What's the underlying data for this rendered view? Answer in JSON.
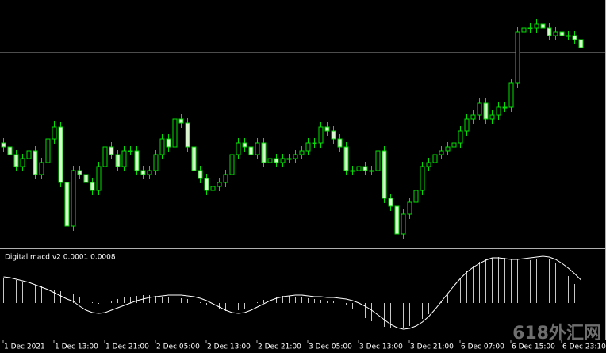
{
  "chart_data": [
    {
      "type": "candlestick",
      "categories": [
        "1 Dec 2021",
        null,
        null,
        null,
        null,
        null,
        null,
        null,
        "1 Dec 13:00",
        null,
        null,
        null,
        null,
        null,
        null,
        null,
        "1 Dec 21:00",
        null,
        null,
        null,
        null,
        null,
        null,
        null,
        "2 Dec 05:00",
        null,
        null,
        null,
        null,
        null,
        null,
        null,
        "2 Dec 13:00",
        null,
        null,
        null,
        null,
        null,
        null,
        null,
        "2 Dec 21:00",
        null,
        null,
        null,
        null,
        null,
        null,
        null,
        "3 Dec 05:00",
        null,
        null,
        null,
        null,
        null,
        null,
        null,
        "3 Dec 13:00",
        null,
        null,
        null,
        null,
        null,
        null,
        null,
        "3 Dec 21:00",
        null,
        null,
        null,
        null,
        null,
        null,
        null,
        "6 Dec 07:00",
        null,
        null,
        null,
        null,
        null,
        null,
        null,
        "6 Dec 15:00",
        null,
        null,
        null,
        null,
        null,
        null,
        null,
        "6 Dec 23:10",
        null,
        null,
        null
      ],
      "open": [
        132,
        127,
        117,
        102,
        112,
        122,
        92,
        107,
        137,
        152,
        82,
        27,
        97,
        92,
        82,
        72,
        102,
        127,
        117,
        102,
        122,
        122,
        97,
        92,
        97,
        117,
        137,
        127,
        162,
        157,
        127,
        97,
        87,
        72,
        77,
        82,
        92,
        117,
        132,
        127,
        117,
        132,
        107,
        112,
        107,
        112,
        112,
        117,
        122,
        132,
        132,
        152,
        147,
        137,
        127,
        97,
        97,
        102,
        97,
        97,
        122,
        62,
        52,
        17,
        42,
        57,
        72,
        102,
        107,
        117,
        122,
        127,
        132,
        147,
        162,
        167,
        182,
        162,
        167,
        177,
        177,
        207,
        272,
        277,
        277,
        282,
        277,
        267,
        272,
        267,
        267,
        262
      ],
      "high": [
        138,
        133,
        123,
        118,
        128,
        128,
        113,
        143,
        160,
        158,
        88,
        103,
        103,
        98,
        88,
        108,
        133,
        133,
        123,
        128,
        128,
        128,
        103,
        103,
        123,
        143,
        143,
        168,
        168,
        163,
        133,
        103,
        93,
        83,
        88,
        98,
        123,
        138,
        138,
        133,
        138,
        138,
        118,
        118,
        118,
        118,
        123,
        128,
        138,
        138,
        158,
        158,
        153,
        143,
        133,
        103,
        108,
        108,
        103,
        128,
        128,
        68,
        58,
        48,
        63,
        78,
        108,
        113,
        123,
        128,
        133,
        138,
        153,
        168,
        173,
        188,
        188,
        173,
        183,
        183,
        213,
        278,
        283,
        283,
        288,
        288,
        283,
        278,
        278,
        273,
        273,
        268
      ],
      "low": [
        121,
        111,
        96,
        96,
        106,
        86,
        86,
        101,
        131,
        76,
        21,
        21,
        86,
        76,
        66,
        66,
        96,
        111,
        96,
        96,
        116,
        91,
        86,
        86,
        91,
        111,
        121,
        121,
        151,
        121,
        91,
        81,
        66,
        66,
        71,
        76,
        86,
        111,
        121,
        111,
        111,
        101,
        101,
        101,
        101,
        106,
        106,
        111,
        116,
        126,
        126,
        141,
        131,
        121,
        91,
        91,
        91,
        91,
        91,
        91,
        56,
        46,
        11,
        11,
        36,
        51,
        66,
        96,
        101,
        111,
        116,
        121,
        126,
        141,
        156,
        161,
        156,
        156,
        161,
        171,
        171,
        201,
        266,
        271,
        271,
        271,
        261,
        261,
        261,
        261,
        256,
        246
      ],
      "close": [
        127,
        117,
        102,
        112,
        122,
        92,
        107,
        137,
        152,
        82,
        27,
        97,
        92,
        82,
        72,
        102,
        127,
        117,
        102,
        122,
        122,
        97,
        92,
        97,
        117,
        137,
        127,
        162,
        157,
        127,
        97,
        87,
        72,
        77,
        82,
        92,
        117,
        132,
        127,
        117,
        132,
        107,
        112,
        107,
        112,
        112,
        117,
        122,
        132,
        132,
        152,
        147,
        137,
        127,
        97,
        97,
        102,
        97,
        97,
        122,
        62,
        52,
        17,
        42,
        57,
        72,
        102,
        107,
        117,
        122,
        127,
        132,
        147,
        162,
        167,
        182,
        162,
        167,
        177,
        177,
        207,
        272,
        277,
        277,
        282,
        277,
        267,
        272,
        267,
        267,
        262,
        252
      ],
      "ylim": [
        0,
        312
      ],
      "hline": 246,
      "hline_color": "#9a9a9a",
      "color_up": "#000000",
      "color_down": "#d8f5d0",
      "edge_color": "#00e000"
    },
    {
      "type": "macd",
      "title": "Digital macd v2 0.0001 0.0008",
      "values": [
        32,
        30,
        29,
        27,
        25,
        23,
        21,
        19,
        17,
        15,
        13,
        11,
        8,
        4,
        1,
        -1,
        -3,
        2,
        5,
        7,
        8,
        9,
        10,
        10,
        9,
        8,
        8,
        7,
        6,
        5,
        3,
        1,
        -2,
        -5,
        -8,
        -10,
        -10,
        -9,
        -7,
        -4,
        1,
        4,
        7,
        8,
        9,
        9,
        8,
        7,
        6,
        5,
        4,
        3,
        2,
        0,
        -3,
        -8,
        -14,
        -19,
        -23,
        -27,
        -30,
        -32,
        -33,
        -32,
        -29,
        -25,
        -20,
        -14,
        -6,
        3,
        12,
        22,
        31,
        40,
        47,
        52,
        55,
        57,
        58,
        57,
        56,
        55,
        54,
        54,
        55,
        56,
        55,
        50,
        42,
        34,
        24,
        14
      ],
      "signal": [
        33,
        32,
        30,
        28,
        26,
        23,
        20,
        17,
        13,
        9,
        5,
        2,
        -4,
        -9,
        -12,
        -13,
        -12,
        -9,
        -6,
        -3,
        0,
        3,
        5,
        7,
        8,
        9,
        10,
        10,
        10,
        9,
        8,
        6,
        3,
        -1,
        -5,
        -9,
        -12,
        -13,
        -12,
        -9,
        -5,
        -1,
        3,
        6,
        8,
        9,
        10,
        10,
        9,
        8,
        8,
        7,
        7,
        6,
        5,
        3,
        0,
        -4,
        -9,
        -15,
        -21,
        -27,
        -31,
        -33,
        -32,
        -29,
        -24,
        -17,
        -8,
        2,
        12,
        22,
        31,
        39,
        45,
        50,
        54,
        57,
        57,
        56,
        55,
        55,
        56,
        57,
        58,
        59,
        58,
        55,
        50,
        44,
        37,
        29
      ],
      "ylim": [
        -46,
        66
      ],
      "color": "#c8c8c8",
      "signal_color": "#ffffff"
    }
  ],
  "watermark": "618外汇网"
}
